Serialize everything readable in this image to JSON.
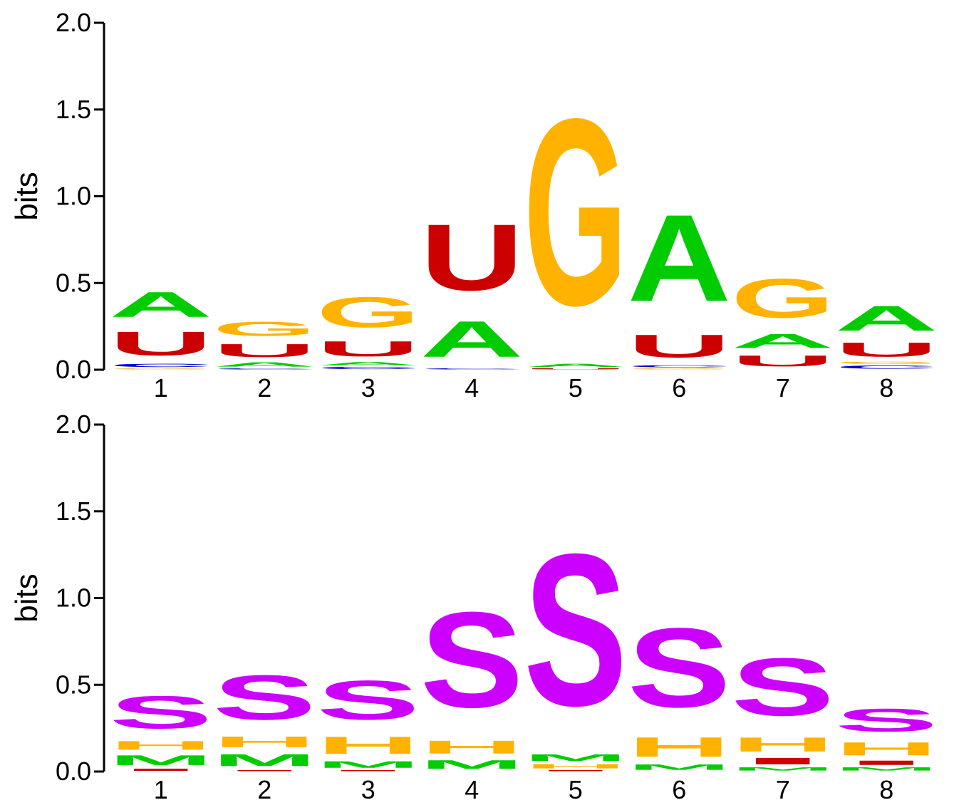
{
  "chart_data": [
    {
      "type": "sequence-logo",
      "ylabel": "bits",
      "ylim": [
        0,
        2.0
      ],
      "yticks": [
        "0.0",
        "0.5",
        "1.0",
        "1.5",
        "2.0"
      ],
      "positions": [
        "1",
        "2",
        "3",
        "4",
        "5",
        "6",
        "7",
        "8"
      ],
      "alphabet_colors": {
        "A": "#00cc00",
        "C": "#0000cc",
        "G": "#ffb300",
        "U": "#cc0000"
      },
      "stacks": [
        [
          {
            "letter": "G",
            "bits": 0.01
          },
          {
            "letter": "C",
            "bits": 0.03
          },
          {
            "letter": "U",
            "bits": 0.22
          },
          {
            "letter": "A",
            "bits": 0.23
          }
        ],
        [
          {
            "letter": "C",
            "bits": 0.01
          },
          {
            "letter": "A",
            "bits": 0.04
          },
          {
            "letter": "U",
            "bits": 0.12
          },
          {
            "letter": "G",
            "bits": 0.13
          }
        ],
        [
          {
            "letter": "C",
            "bits": 0.02
          },
          {
            "letter": "A",
            "bits": 0.03
          },
          {
            "letter": "U",
            "bits": 0.14
          },
          {
            "letter": "G",
            "bits": 0.28
          }
        ],
        [
          {
            "letter": "C",
            "bits": 0.01
          },
          {
            "letter": "A",
            "bits": 0.33
          },
          {
            "letter": "U",
            "bits": 0.61
          }
        ],
        [
          {
            "letter": "U",
            "bits": 0.01
          },
          {
            "letter": "A",
            "bits": 0.03
          },
          {
            "letter": "G",
            "bits": 1.72
          }
        ],
        [
          {
            "letter": "G",
            "bits": 0.01
          },
          {
            "letter": "C",
            "bits": 0.02
          },
          {
            "letter": "U",
            "bits": 0.21
          },
          {
            "letter": "A",
            "bits": 0.8
          }
        ],
        [
          {
            "letter": "U",
            "bits": 0.1
          },
          {
            "letter": "A",
            "bits": 0.13
          },
          {
            "letter": "G",
            "bits": 0.36
          }
        ],
        [
          {
            "letter": "C",
            "bits": 0.03
          },
          {
            "letter": "G",
            "bits": 0.02
          },
          {
            "letter": "U",
            "bits": 0.13
          },
          {
            "letter": "A",
            "bits": 0.23
          }
        ]
      ]
    },
    {
      "type": "sequence-logo",
      "ylabel": "bits",
      "ylim": [
        0,
        2.0
      ],
      "yticks": [
        "0.0",
        "0.5",
        "1.0",
        "1.5",
        "2.0"
      ],
      "positions": [
        "1",
        "2",
        "3",
        "4",
        "5",
        "6",
        "7",
        "8"
      ],
      "alphabet_colors": {
        "S": "#cc00ff",
        "H": "#ffb300",
        "M": "#00cc00",
        "I": "#cc0000"
      },
      "stacks": [
        [
          {
            "letter": "I",
            "bits": 0.02
          },
          {
            "letter": "M",
            "bits": 0.09
          },
          {
            "letter": "H",
            "bits": 0.08
          },
          {
            "letter": "S",
            "bits": 0.3
          }
        ],
        [
          {
            "letter": "I",
            "bits": 0.01
          },
          {
            "letter": "M",
            "bits": 0.11
          },
          {
            "letter": "H",
            "bits": 0.1
          },
          {
            "letter": "S",
            "bits": 0.41
          }
        ],
        [
          {
            "letter": "I",
            "bits": 0.01
          },
          {
            "letter": "M",
            "bits": 0.06
          },
          {
            "letter": "H",
            "bits": 0.16
          },
          {
            "letter": "S",
            "bits": 0.36
          }
        ],
        [
          {
            "letter": "M",
            "bits": 0.08
          },
          {
            "letter": "H",
            "bits": 0.12
          },
          {
            "letter": "S",
            "bits": 0.88
          }
        ],
        [
          {
            "letter": "I",
            "bits": 0.01
          },
          {
            "letter": "H",
            "bits": 0.04
          },
          {
            "letter": "M",
            "bits": 0.06
          },
          {
            "letter": "S",
            "bits": 1.4
          }
        ],
        [
          {
            "letter": "M",
            "bits": 0.05
          },
          {
            "letter": "H",
            "bits": 0.18
          },
          {
            "letter": "S",
            "bits": 0.73
          }
        ],
        [
          {
            "letter": "M",
            "bits": 0.03
          },
          {
            "letter": "I",
            "bits": 0.06
          },
          {
            "letter": "H",
            "bits": 0.13
          },
          {
            "letter": "S",
            "bits": 0.53
          }
        ],
        [
          {
            "letter": "M",
            "bits": 0.03
          },
          {
            "letter": "I",
            "bits": 0.04
          },
          {
            "letter": "H",
            "bits": 0.12
          },
          {
            "letter": "S",
            "bits": 0.21
          }
        ]
      ]
    }
  ]
}
